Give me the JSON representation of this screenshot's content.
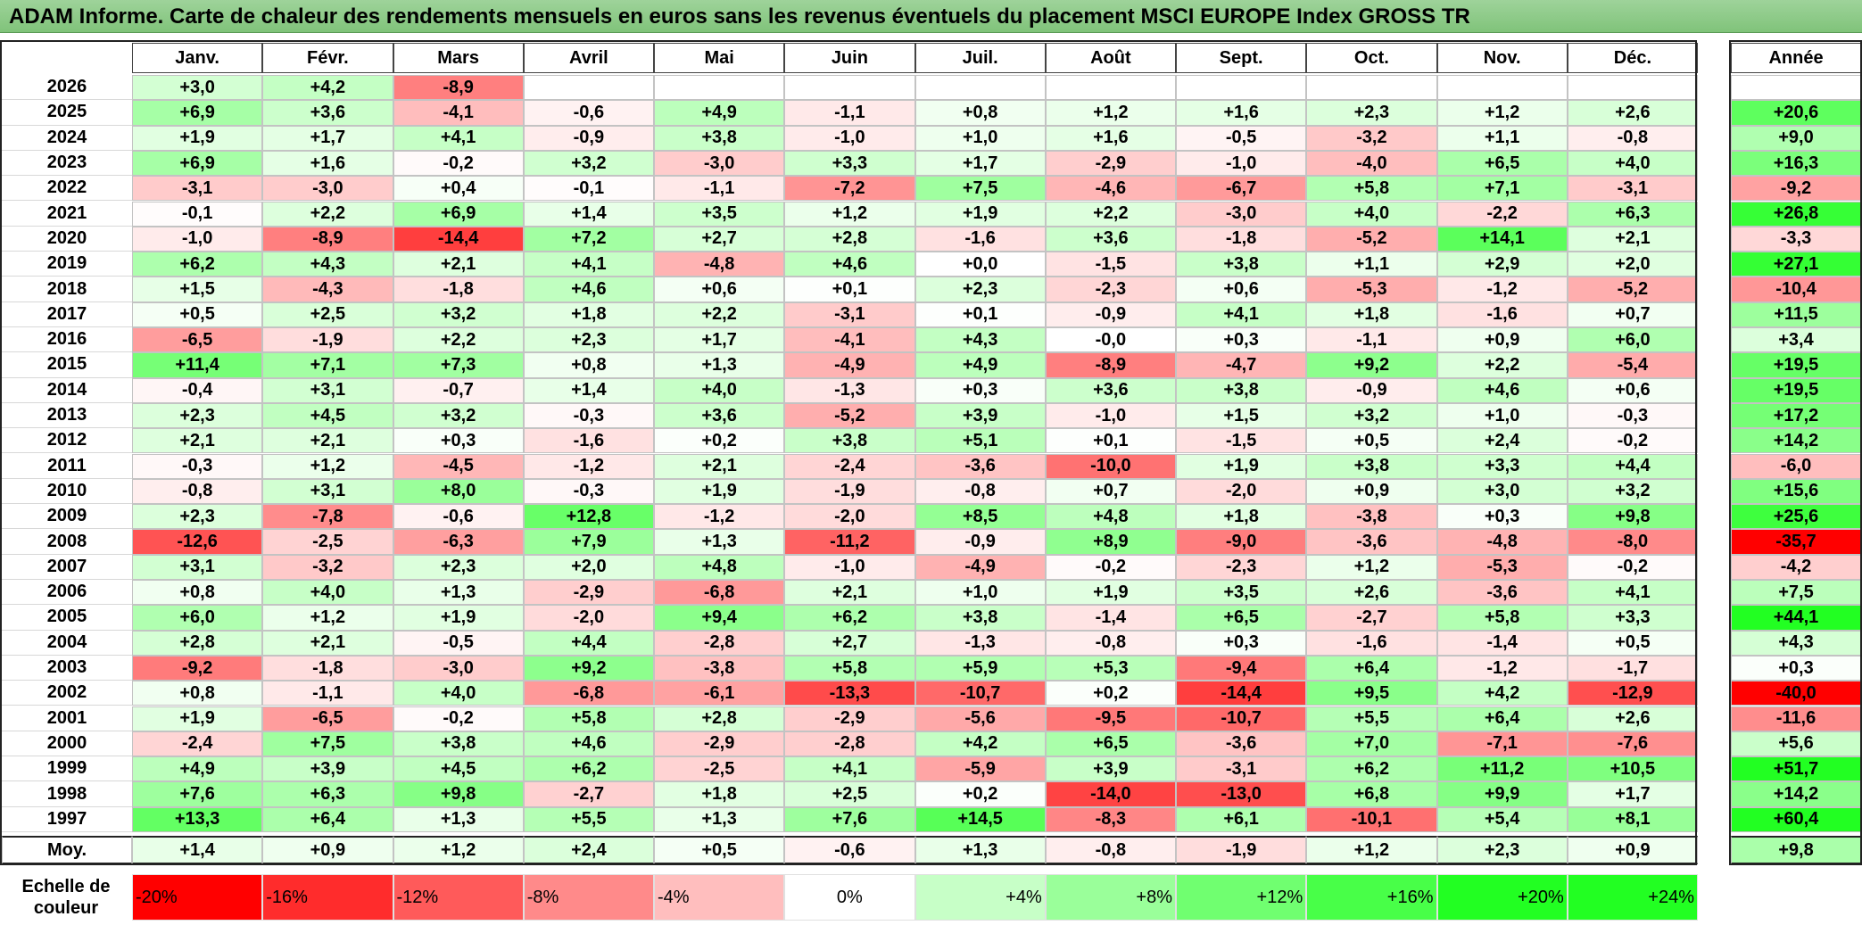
{
  "title": "ADAM Informe. Carte de chaleur des rendements mensuels en euros sans les revenus éventuels du placement MSCI EUROPE Index GROSS TR",
  "chart_data": {
    "type": "heatmap",
    "columns": [
      "Janv.",
      "Févr.",
      "Mars",
      "Avril",
      "Mai",
      "Juin",
      "Juil.",
      "Août",
      "Sept.",
      "Oct.",
      "Nov.",
      "Déc."
    ],
    "year_column_label": "Année",
    "rows": [
      {
        "year": "2026",
        "months": [
          "+3,0",
          "+4,2",
          "-8,9",
          "",
          "",
          "",
          "",
          "",
          "",
          "",
          "",
          ""
        ],
        "annual": ""
      },
      {
        "year": "2025",
        "months": [
          "+6,9",
          "+3,6",
          "-4,1",
          "-0,6",
          "+4,9",
          "-1,1",
          "+0,8",
          "+1,2",
          "+1,6",
          "+2,3",
          "+1,2",
          "+2,6"
        ],
        "annual": "+20,6"
      },
      {
        "year": "2024",
        "months": [
          "+1,9",
          "+1,7",
          "+4,1",
          "-0,9",
          "+3,8",
          "-1,0",
          "+1,0",
          "+1,6",
          "-0,5",
          "-3,2",
          "+1,1",
          "-0,8"
        ],
        "annual": "+9,0"
      },
      {
        "year": "2023",
        "months": [
          "+6,9",
          "+1,6",
          "-0,2",
          "+3,2",
          "-3,0",
          "+3,3",
          "+1,7",
          "-2,9",
          "-1,0",
          "-4,0",
          "+6,5",
          "+4,0"
        ],
        "annual": "+16,3"
      },
      {
        "year": "2022",
        "months": [
          "-3,1",
          "-3,0",
          "+0,4",
          "-0,1",
          "-1,1",
          "-7,2",
          "+7,5",
          "-4,6",
          "-6,7",
          "+5,8",
          "+7,1",
          "-3,1"
        ],
        "annual": "-9,2"
      },
      {
        "year": "2021",
        "months": [
          "-0,1",
          "+2,2",
          "+6,9",
          "+1,4",
          "+3,5",
          "+1,2",
          "+1,9",
          "+2,2",
          "-3,0",
          "+4,0",
          "-2,2",
          "+6,3"
        ],
        "annual": "+26,8"
      },
      {
        "year": "2020",
        "months": [
          "-1,0",
          "-8,9",
          "-14,4",
          "+7,2",
          "+2,7",
          "+2,8",
          "-1,6",
          "+3,6",
          "-1,8",
          "-5,2",
          "+14,1",
          "+2,1"
        ],
        "annual": "-3,3"
      },
      {
        "year": "2019",
        "months": [
          "+6,2",
          "+4,3",
          "+2,1",
          "+4,1",
          "-4,8",
          "+4,6",
          "+0,0",
          "-1,5",
          "+3,8",
          "+1,1",
          "+2,9",
          "+2,0"
        ],
        "annual": "+27,1"
      },
      {
        "year": "2018",
        "months": [
          "+1,5",
          "-4,3",
          "-1,8",
          "+4,6",
          "+0,6",
          "+0,1",
          "+2,3",
          "-2,3",
          "+0,6",
          "-5,3",
          "-1,2",
          "-5,2"
        ],
        "annual": "-10,4"
      },
      {
        "year": "2017",
        "months": [
          "+0,5",
          "+2,5",
          "+3,2",
          "+1,8",
          "+2,2",
          "-3,1",
          "+0,1",
          "-0,9",
          "+4,1",
          "+1,8",
          "-1,6",
          "+0,7"
        ],
        "annual": "+11,5"
      },
      {
        "year": "2016",
        "months": [
          "-6,5",
          "-1,9",
          "+2,2",
          "+2,3",
          "+1,7",
          "-4,1",
          "+4,3",
          "-0,0",
          "+0,3",
          "-1,1",
          "+0,9",
          "+6,0"
        ],
        "annual": "+3,4"
      },
      {
        "year": "2015",
        "months": [
          "+11,4",
          "+7,1",
          "+7,3",
          "+0,8",
          "+1,3",
          "-4,9",
          "+4,9",
          "-8,9",
          "-4,7",
          "+9,2",
          "+2,2",
          "-5,4"
        ],
        "annual": "+19,5"
      },
      {
        "year": "2014",
        "months": [
          "-0,4",
          "+3,1",
          "-0,7",
          "+1,4",
          "+4,0",
          "-1,3",
          "+0,3",
          "+3,6",
          "+3,8",
          "-0,9",
          "+4,6",
          "+0,6"
        ],
        "annual": "+19,5"
      },
      {
        "year": "2013",
        "months": [
          "+2,3",
          "+4,5",
          "+3,2",
          "-0,3",
          "+3,6",
          "-5,2",
          "+3,9",
          "-1,0",
          "+1,5",
          "+3,2",
          "+1,0",
          "-0,3"
        ],
        "annual": "+17,2"
      },
      {
        "year": "2012",
        "months": [
          "+2,1",
          "+2,1",
          "+0,3",
          "-1,6",
          "+0,2",
          "+3,8",
          "+5,1",
          "+0,1",
          "-1,5",
          "+0,5",
          "+2,4",
          "-0,2"
        ],
        "annual": "+14,2"
      },
      {
        "year": "2011",
        "months": [
          "-0,3",
          "+1,2",
          "-4,5",
          "-1,2",
          "+2,1",
          "-2,4",
          "-3,6",
          "-10,0",
          "+1,9",
          "+3,8",
          "+3,3",
          "+4,4"
        ],
        "annual": "-6,0"
      },
      {
        "year": "2010",
        "months": [
          "-0,8",
          "+3,1",
          "+8,0",
          "-0,3",
          "+1,9",
          "-1,9",
          "-0,8",
          "+0,7",
          "-2,0",
          "+0,9",
          "+3,0",
          "+3,2"
        ],
        "annual": "+15,6"
      },
      {
        "year": "2009",
        "months": [
          "+2,3",
          "-7,8",
          "-0,6",
          "+12,8",
          "-1,2",
          "-2,0",
          "+8,5",
          "+4,8",
          "+1,8",
          "-3,8",
          "+0,3",
          "+9,8"
        ],
        "annual": "+25,6"
      },
      {
        "year": "2008",
        "months": [
          "-12,6",
          "-2,5",
          "-6,3",
          "+7,9",
          "+1,3",
          "-11,2",
          "-0,9",
          "+8,9",
          "-9,0",
          "-3,6",
          "-4,8",
          "-8,0"
        ],
        "annual": "-35,7"
      },
      {
        "year": "2007",
        "months": [
          "+3,1",
          "-3,2",
          "+2,3",
          "+2,0",
          "+4,8",
          "-1,0",
          "-4,9",
          "-0,2",
          "-2,3",
          "+1,2",
          "-5,3",
          "-0,2"
        ],
        "annual": "-4,2"
      },
      {
        "year": "2006",
        "months": [
          "+0,8",
          "+4,0",
          "+1,3",
          "-2,9",
          "-6,8",
          "+2,1",
          "+1,0",
          "+1,9",
          "+3,5",
          "+2,6",
          "-3,6",
          "+4,1"
        ],
        "annual": "+7,5"
      },
      {
        "year": "2005",
        "months": [
          "+6,0",
          "+1,2",
          "+1,9",
          "-2,0",
          "+9,4",
          "+6,2",
          "+3,8",
          "-1,4",
          "+6,5",
          "-2,7",
          "+5,8",
          "+3,3"
        ],
        "annual": "+44,1"
      },
      {
        "year": "2004",
        "months": [
          "+2,8",
          "+2,1",
          "-0,5",
          "+4,4",
          "-2,8",
          "+2,7",
          "-1,3",
          "-0,8",
          "+0,3",
          "-1,6",
          "-1,4",
          "+0,5"
        ],
        "annual": "+4,3"
      },
      {
        "year": "2003",
        "months": [
          "-9,2",
          "-1,8",
          "-3,0",
          "+9,2",
          "-3,8",
          "+5,8",
          "+5,9",
          "+5,3",
          "-9,4",
          "+6,4",
          "-1,2",
          "-1,7"
        ],
        "annual": "+0,3"
      },
      {
        "year": "2002",
        "months": [
          "+0,8",
          "-1,1",
          "+4,0",
          "-6,8",
          "-6,1",
          "-13,3",
          "-10,7",
          "+0,2",
          "-14,4",
          "+9,5",
          "+4,2",
          "-12,9"
        ],
        "annual": "-40,0"
      },
      {
        "year": "2001",
        "months": [
          "+1,9",
          "-6,5",
          "-0,2",
          "+5,8",
          "+2,8",
          "-2,9",
          "-5,6",
          "-9,5",
          "-10,7",
          "+5,5",
          "+6,4",
          "+2,6"
        ],
        "annual": "-11,6"
      },
      {
        "year": "2000",
        "months": [
          "-2,4",
          "+7,5",
          "+3,8",
          "+4,6",
          "-2,9",
          "-2,8",
          "+4,2",
          "+6,5",
          "-3,6",
          "+7,0",
          "-7,1",
          "-7,6"
        ],
        "annual": "+5,6"
      },
      {
        "year": "1999",
        "months": [
          "+4,9",
          "+3,9",
          "+4,5",
          "+6,2",
          "-2,5",
          "+4,1",
          "-5,9",
          "+3,9",
          "-3,1",
          "+6,2",
          "+11,2",
          "+10,5"
        ],
        "annual": "+51,7"
      },
      {
        "year": "1998",
        "months": [
          "+7,6",
          "+6,3",
          "+9,8",
          "-2,7",
          "+1,8",
          "+2,5",
          "+0,2",
          "-14,0",
          "-13,0",
          "+6,8",
          "+9,9",
          "+1,7"
        ],
        "annual": "+14,2"
      },
      {
        "year": "1997",
        "months": [
          "+13,3",
          "+6,4",
          "+1,3",
          "+5,5",
          "+1,3",
          "+7,6",
          "+14,5",
          "-8,3",
          "+6,1",
          "-10,1",
          "+5,4",
          "+8,1"
        ],
        "annual": "+60,4"
      }
    ],
    "average": {
      "label": "Moy.",
      "months": [
        "+1,4",
        "+0,9",
        "+1,2",
        "+2,4",
        "+0,5",
        "-0,6",
        "+1,3",
        "-0,8",
        "-1,9",
        "+1,2",
        "+2,3",
        "+0,9"
      ],
      "annual": "+9,8"
    },
    "scale": {
      "label": "Echelle de couleur",
      "entries": [
        {
          "text": "-20%",
          "value": -20,
          "align": "left"
        },
        {
          "text": "-16%",
          "value": -16,
          "align": "left"
        },
        {
          "text": "-12%",
          "value": -12,
          "align": "left"
        },
        {
          "text": "-8%",
          "value": -8,
          "align": "left"
        },
        {
          "text": "-4%",
          "value": -4,
          "align": "left"
        },
        {
          "text": "0%",
          "value": 0,
          "align": "center"
        },
        {
          "text": "+4%",
          "value": 4,
          "align": "right"
        },
        {
          "text": "+8%",
          "value": 8,
          "align": "right"
        },
        {
          "text": "+12%",
          "value": 12,
          "align": "right"
        },
        {
          "text": "+16%",
          "value": 16,
          "align": "right"
        },
        {
          "text": "+20%",
          "value": 20,
          "align": "right"
        },
        {
          "text": "+24%",
          "value": 24,
          "align": "right"
        }
      ]
    },
    "colors": {
      "negative_max": "#ff0000",
      "positive_max": "#22ff22",
      "neutral": "#ffffff",
      "title_bar": "#8fcb8a"
    }
  }
}
